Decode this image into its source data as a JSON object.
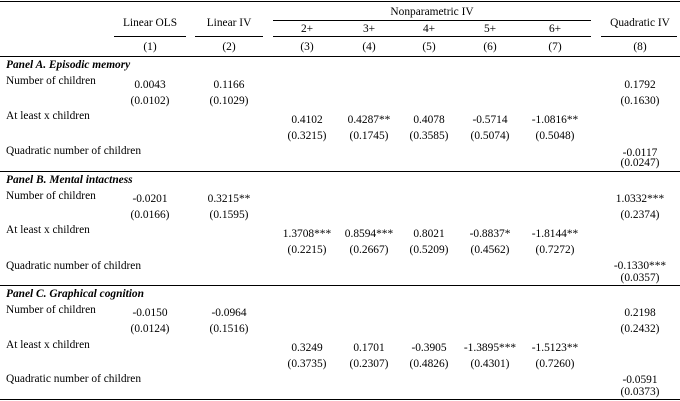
{
  "header": {
    "col1": "Linear OLS",
    "col2": "Linear IV",
    "group": "Nonparametric IV",
    "col8": "Quadratic IV",
    "sub": [
      "2+",
      "3+",
      "4+",
      "5+",
      "6+"
    ],
    "nums": [
      "(1)",
      "(2)",
      "(3)",
      "(4)",
      "(5)",
      "(6)",
      "(7)",
      "(8)"
    ]
  },
  "panels": [
    {
      "title": "Panel A. Episodic memory",
      "rows": [
        {
          "label": "Number of children",
          "c1": "0.0043",
          "c1se": "(0.0102)",
          "c2": "0.1166",
          "c2se": "(0.1029)",
          "c8": "0.1792",
          "c8se": "(0.1630)"
        },
        {
          "label": "At least x children",
          "c3": "0.4102",
          "c3se": "(0.3215)",
          "c4": "0.4287**",
          "c4se": "(0.1745)",
          "c5": "0.4078",
          "c5se": "(0.3585)",
          "c6": "-0.5714",
          "c6se": "(0.5074)",
          "c7": "-1.0816**",
          "c7se": "(0.5048)"
        },
        {
          "label": "Quadratic number of children",
          "c8": "-0.0117",
          "c8se": "(0.0247)"
        }
      ]
    },
    {
      "title": "Panel B. Mental intactness",
      "rows": [
        {
          "label": "Number of children",
          "c1": "-0.0201",
          "c1se": "(0.0166)",
          "c2": "0.3215**",
          "c2se": "(0.1595)",
          "c8": "1.0332***",
          "c8se": "(0.2374)"
        },
        {
          "label": "At least x children",
          "c3": "1.3708***",
          "c3se": "(0.2215)",
          "c4": "0.8594***",
          "c4se": "(0.2667)",
          "c5": "0.8021",
          "c5se": "(0.5209)",
          "c6": "-0.8837*",
          "c6se": "(0.4562)",
          "c7": "-1.8144**",
          "c7se": "(0.7272)"
        },
        {
          "label": "Quadratic number of children",
          "c8": "-0.1330***",
          "c8se": "(0.0357)"
        }
      ]
    },
    {
      "title": "Panel C. Graphical cognition",
      "rows": [
        {
          "label": "Number of children",
          "c1": "-0.0150",
          "c1se": "(0.0124)",
          "c2": "-0.0964",
          "c2se": "(0.1516)",
          "c8": "0.2198",
          "c8se": "(0.2432)"
        },
        {
          "label": "At least x children",
          "c3": "0.3249",
          "c3se": "(0.3735)",
          "c4": "0.1701",
          "c4se": "(0.2307)",
          "c5": "-0.3905",
          "c5se": "(0.4826)",
          "c6": "-1.3895***",
          "c6se": "(0.4301)",
          "c7": "-1.5123**",
          "c7se": "(0.7260)"
        },
        {
          "label": "Quadratic number of children",
          "c8": "-0.0591",
          "c8se": "(0.0373)"
        }
      ]
    }
  ]
}
